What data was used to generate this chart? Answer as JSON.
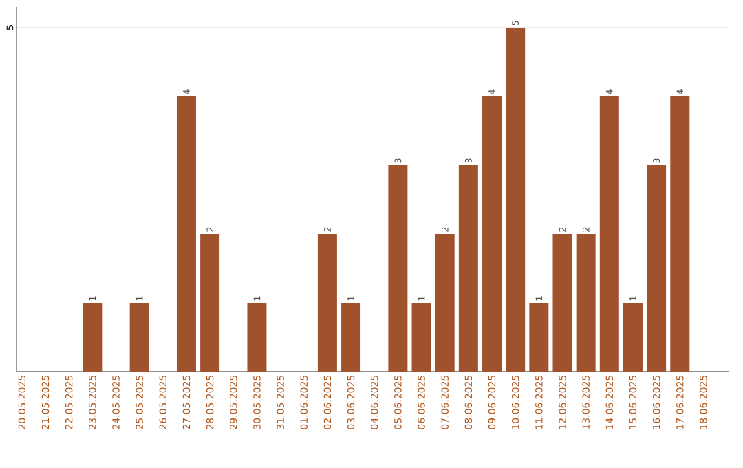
{
  "chart_data": {
    "type": "bar",
    "categories": [
      "20.05.2025",
      "21.05.2025",
      "22.05.2025",
      "23.05.2025",
      "24.05.2025",
      "25.05.2025",
      "26.05.2025",
      "27.05.2025",
      "28.05.2025",
      "29.05.2025",
      "30.05.2025",
      "31.05.2025",
      "01.06.2025",
      "02.06.2025",
      "03.06.2025",
      "04.06.2025",
      "05.06.2025",
      "06.06.2025",
      "07.06.2025",
      "08.06.2025",
      "09.06.2025",
      "10.06.2025",
      "11.06.2025",
      "12.06.2025",
      "13.06.2025",
      "14.06.2025",
      "15.06.2025",
      "16.06.2025",
      "17.06.2025",
      "18.06.2025"
    ],
    "values": [
      null,
      null,
      null,
      1,
      null,
      1,
      null,
      4,
      2,
      null,
      1,
      null,
      null,
      2,
      1,
      null,
      3,
      1,
      2,
      3,
      4,
      5,
      1,
      2,
      2,
      4,
      1,
      3,
      4,
      null
    ],
    "color": "#a0522d",
    "ylim": [
      0,
      5.3
    ],
    "yticks": [
      {
        "value": 0,
        "label": null
      },
      5
    ],
    "grid": "y",
    "data_labels": true
  }
}
